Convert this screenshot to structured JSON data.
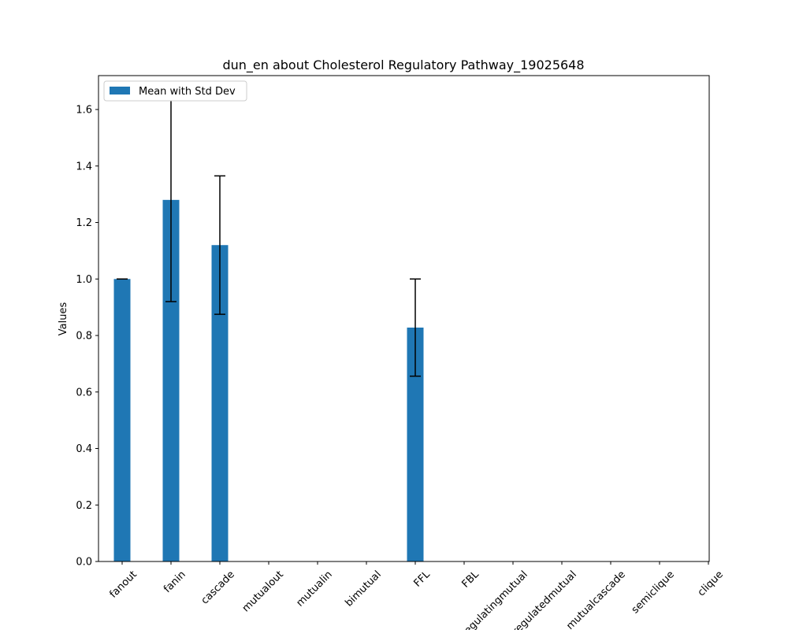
{
  "chart_data": {
    "type": "bar",
    "title": "dun_en about Cholesterol Regulatory Pathway_19025648",
    "xlabel": "",
    "ylabel": "Values",
    "ylim": [
      0,
      1.72
    ],
    "yticks": [
      0.0,
      0.2,
      0.4,
      0.6,
      0.8,
      1.0,
      1.2,
      1.4,
      1.6
    ],
    "ytick_labels": [
      "0.0",
      "0.2",
      "0.4",
      "0.6",
      "0.8",
      "1.0",
      "1.2",
      "1.4",
      "1.6"
    ],
    "categories": [
      "fanout",
      "fanin",
      "cascade",
      "mutualout",
      "mutualin",
      "bimutual",
      "FFL",
      "FBL",
      "regulatingmutual",
      "regulatedmutual",
      "mutualcascade",
      "semiclique",
      "clique"
    ],
    "series": [
      {
        "name": "Mean with Std Dev",
        "color": "#1f77b4",
        "values": [
          1.0,
          1.28,
          1.12,
          0,
          0,
          0,
          0.828,
          0,
          0,
          0,
          0,
          0,
          0
        ],
        "error": [
          0.0,
          0.36,
          0.245,
          0,
          0,
          0,
          0.172,
          0,
          0,
          0,
          0,
          0,
          0
        ]
      }
    ],
    "grid": false,
    "legend_position": "top-left"
  }
}
